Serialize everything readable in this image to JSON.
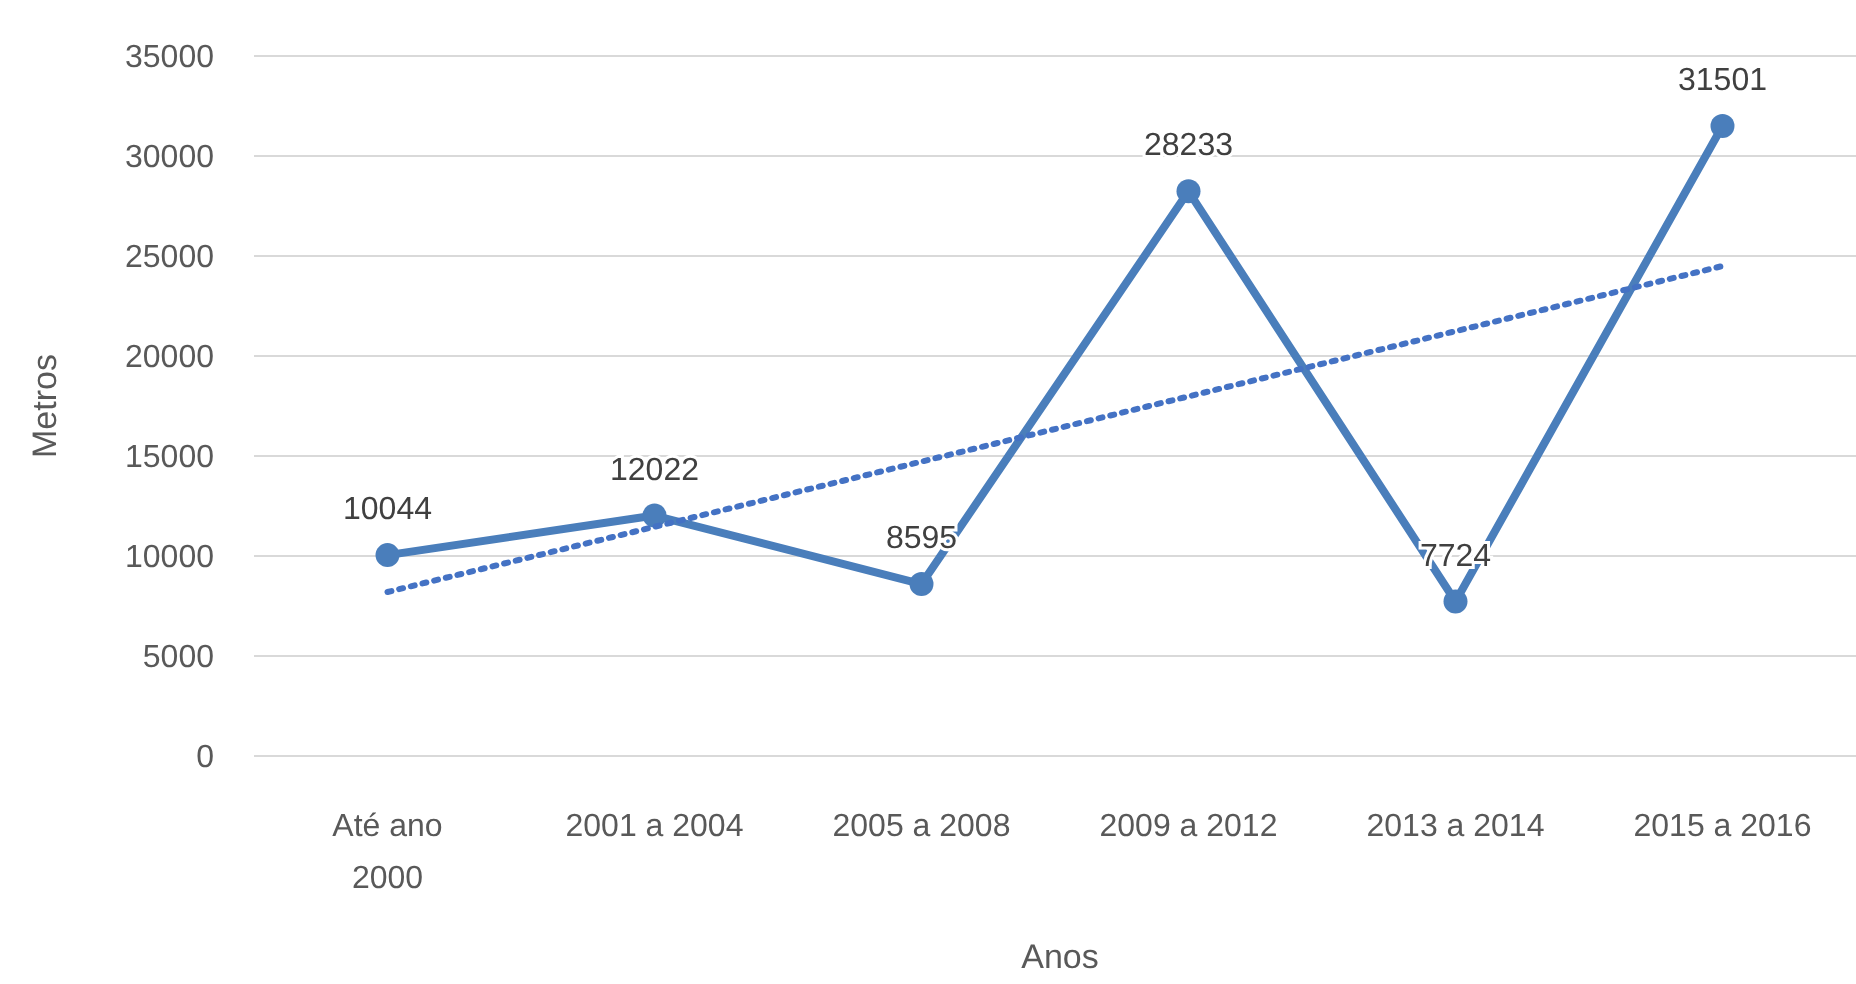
{
  "chart_data": {
    "type": "line",
    "xlabel": "Anos",
    "ylabel": "Metros",
    "categories": [
      "Até ano 2000",
      "2001 a 2004",
      "2005 a 2008",
      "2009 a 2012",
      "2013 a 2014",
      "2015 a 2016"
    ],
    "ylim": [
      0,
      35000
    ],
    "yticks": [
      0,
      5000,
      10000,
      15000,
      20000,
      25000,
      30000,
      35000
    ],
    "grid": "y",
    "series": [
      {
        "color": "#4a7ebb",
        "values": [
          10044,
          12022,
          8595,
          28233,
          7724,
          31501
        ],
        "value_labels": [
          "10044",
          "12022",
          "8595",
          "28233",
          "7724",
          "31501"
        ],
        "marker": "circle",
        "line_style": "solid"
      },
      {
        "type": "line",
        "color": "#4472c4",
        "x": [
          "Até ano 2000",
          "2015 a 2016"
        ],
        "values": [
          8200,
          24500
        ],
        "marker": "none",
        "line_style": "dotted"
      }
    ]
  }
}
